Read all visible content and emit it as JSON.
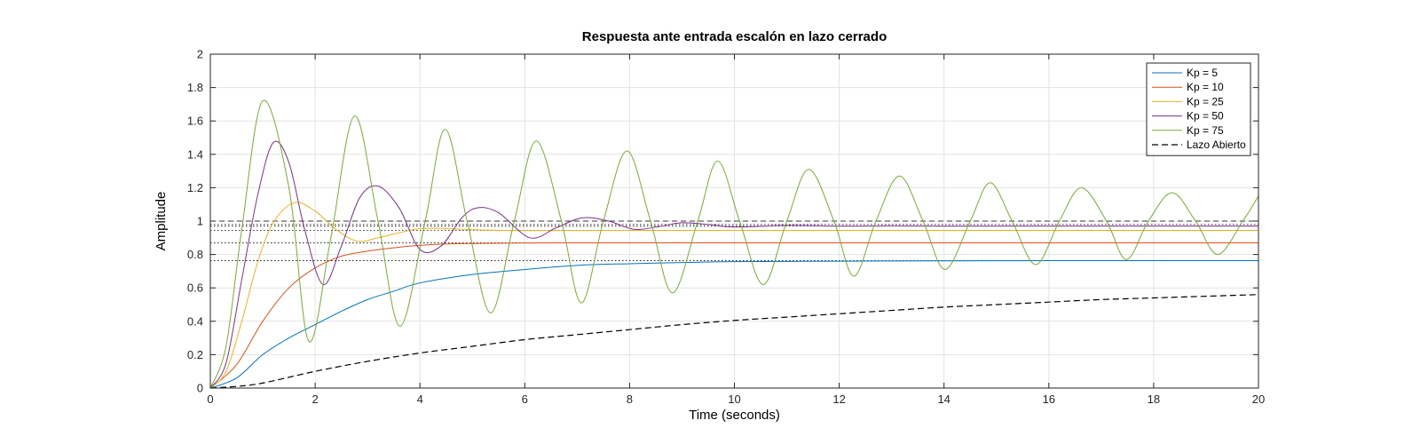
{
  "chart_data": {
    "type": "line",
    "title": "Respuesta ante entrada escalón en lazo cerrado",
    "xlabel": "Time (seconds)",
    "ylabel": "Amplitude",
    "xlim": [
      0,
      20
    ],
    "ylim": [
      0,
      2
    ],
    "x_ticks": [
      "0",
      "2",
      "4",
      "6",
      "8",
      "10",
      "12",
      "14",
      "16",
      "18",
      "20"
    ],
    "y_ticks": [
      "0",
      "0.2",
      "0.4",
      "0.6",
      "0.8",
      "1",
      "1.2",
      "1.4",
      "1.6",
      "1.8",
      "2"
    ],
    "grid": true,
    "legend_position": "top-right",
    "steady_state_reference_lines": [
      0.763,
      0.87,
      0.944,
      0.971,
      0.98,
      1.0
    ],
    "series": [
      {
        "name": "Kp = 5",
        "color": "#0072BD",
        "dash": "solid",
        "x": [
          0,
          0.5,
          1,
          1.5,
          2,
          2.5,
          3,
          3.5,
          4,
          5,
          6,
          7,
          8,
          9,
          10,
          12,
          14,
          16,
          18,
          20
        ],
        "y": [
          0,
          0.06,
          0.2,
          0.3,
          0.38,
          0.46,
          0.53,
          0.58,
          0.63,
          0.68,
          0.71,
          0.735,
          0.745,
          0.752,
          0.757,
          0.76,
          0.762,
          0.763,
          0.763,
          0.763
        ]
      },
      {
        "name": "Kp = 10",
        "color": "#D95319",
        "dash": "solid",
        "x": [
          0,
          0.5,
          1,
          1.5,
          2,
          2.5,
          3,
          3.5,
          4,
          4.5,
          5,
          6,
          8,
          10,
          15,
          20
        ],
        "y": [
          0,
          0.14,
          0.4,
          0.6,
          0.72,
          0.79,
          0.82,
          0.84,
          0.855,
          0.863,
          0.866,
          0.869,
          0.87,
          0.87,
          0.87,
          0.87
        ]
      },
      {
        "name": "Kp = 25",
        "color": "#EDB120",
        "dash": "solid",
        "x": [
          0,
          0.3,
          0.6,
          0.9,
          1.2,
          1.6,
          2.0,
          2.4,
          2.8,
          3.2,
          3.6,
          4.0,
          4.5,
          5,
          6,
          8,
          10,
          15,
          20
        ],
        "y": [
          0,
          0.1,
          0.4,
          0.75,
          0.99,
          1.11,
          1.06,
          0.95,
          0.88,
          0.9,
          0.93,
          0.955,
          0.955,
          0.948,
          0.943,
          0.944,
          0.944,
          0.944,
          0.944
        ]
      },
      {
        "name": "Kp = 50",
        "color": "#7E2F8E",
        "dash": "solid",
        "x": [
          0,
          0.3,
          0.6,
          0.9,
          1.2,
          1.5,
          1.8,
          2.15,
          2.5,
          2.85,
          3.2,
          3.6,
          4.0,
          4.4,
          4.8,
          5.1,
          5.5,
          6.1,
          6.6,
          7.1,
          7.6,
          8.1,
          8.6,
          9.0,
          9.5,
          10,
          11,
          12,
          13,
          14,
          16,
          18,
          20
        ],
        "y": [
          0,
          0.15,
          0.65,
          1.15,
          1.47,
          1.35,
          0.95,
          0.62,
          0.85,
          1.14,
          1.21,
          1.08,
          0.83,
          0.85,
          1.02,
          1.08,
          1.05,
          0.9,
          0.96,
          1.02,
          1.0,
          0.95,
          0.97,
          0.99,
          0.98,
          0.965,
          0.975,
          0.97,
          0.972,
          0.97,
          0.971,
          0.971,
          0.971
        ]
      },
      {
        "name": "Kp = 75",
        "color": "#77AC30",
        "dash": "solid",
        "x": [
          0,
          0.3,
          0.6,
          1.0,
          1.5,
          1.88,
          2.3,
          2.75,
          3.2,
          3.62,
          4.1,
          4.48,
          4.9,
          5.35,
          5.8,
          6.22,
          6.7,
          7.08,
          7.5,
          7.95,
          8.4,
          8.82,
          9.3,
          9.68,
          10.1,
          10.55,
          11.0,
          11.42,
          11.9,
          12.28,
          12.7,
          13.15,
          13.6,
          14.02,
          14.5,
          14.88,
          15.3,
          15.75,
          16.2,
          16.62,
          17.1,
          17.48,
          17.9,
          18.35,
          18.8,
          19.22,
          19.7,
          20
        ],
        "y": [
          0,
          0.25,
          0.95,
          1.72,
          1.2,
          0.28,
          0.9,
          1.63,
          1.0,
          0.37,
          1.0,
          1.55,
          1.0,
          0.45,
          1.0,
          1.48,
          1.0,
          0.51,
          1.0,
          1.42,
          1.0,
          0.57,
          1.0,
          1.36,
          1.0,
          0.62,
          1.0,
          1.31,
          1.0,
          0.67,
          1.0,
          1.27,
          1.0,
          0.71,
          1.0,
          1.23,
          1.0,
          0.74,
          1.0,
          1.2,
          1.0,
          0.77,
          1.0,
          1.17,
          1.0,
          0.8,
          1.0,
          1.15
        ]
      },
      {
        "name": "Lazo Abierto",
        "color": "#000000",
        "dash": "dashed",
        "x": [
          0,
          0.5,
          1,
          2,
          3,
          4,
          5,
          6,
          7,
          8,
          9,
          10,
          11,
          12,
          13,
          14,
          15,
          16,
          17,
          18,
          19,
          20
        ],
        "y": [
          0,
          0.01,
          0.03,
          0.1,
          0.16,
          0.21,
          0.25,
          0.29,
          0.32,
          0.35,
          0.38,
          0.405,
          0.425,
          0.445,
          0.465,
          0.485,
          0.5,
          0.515,
          0.53,
          0.54,
          0.55,
          0.56
        ]
      }
    ]
  }
}
